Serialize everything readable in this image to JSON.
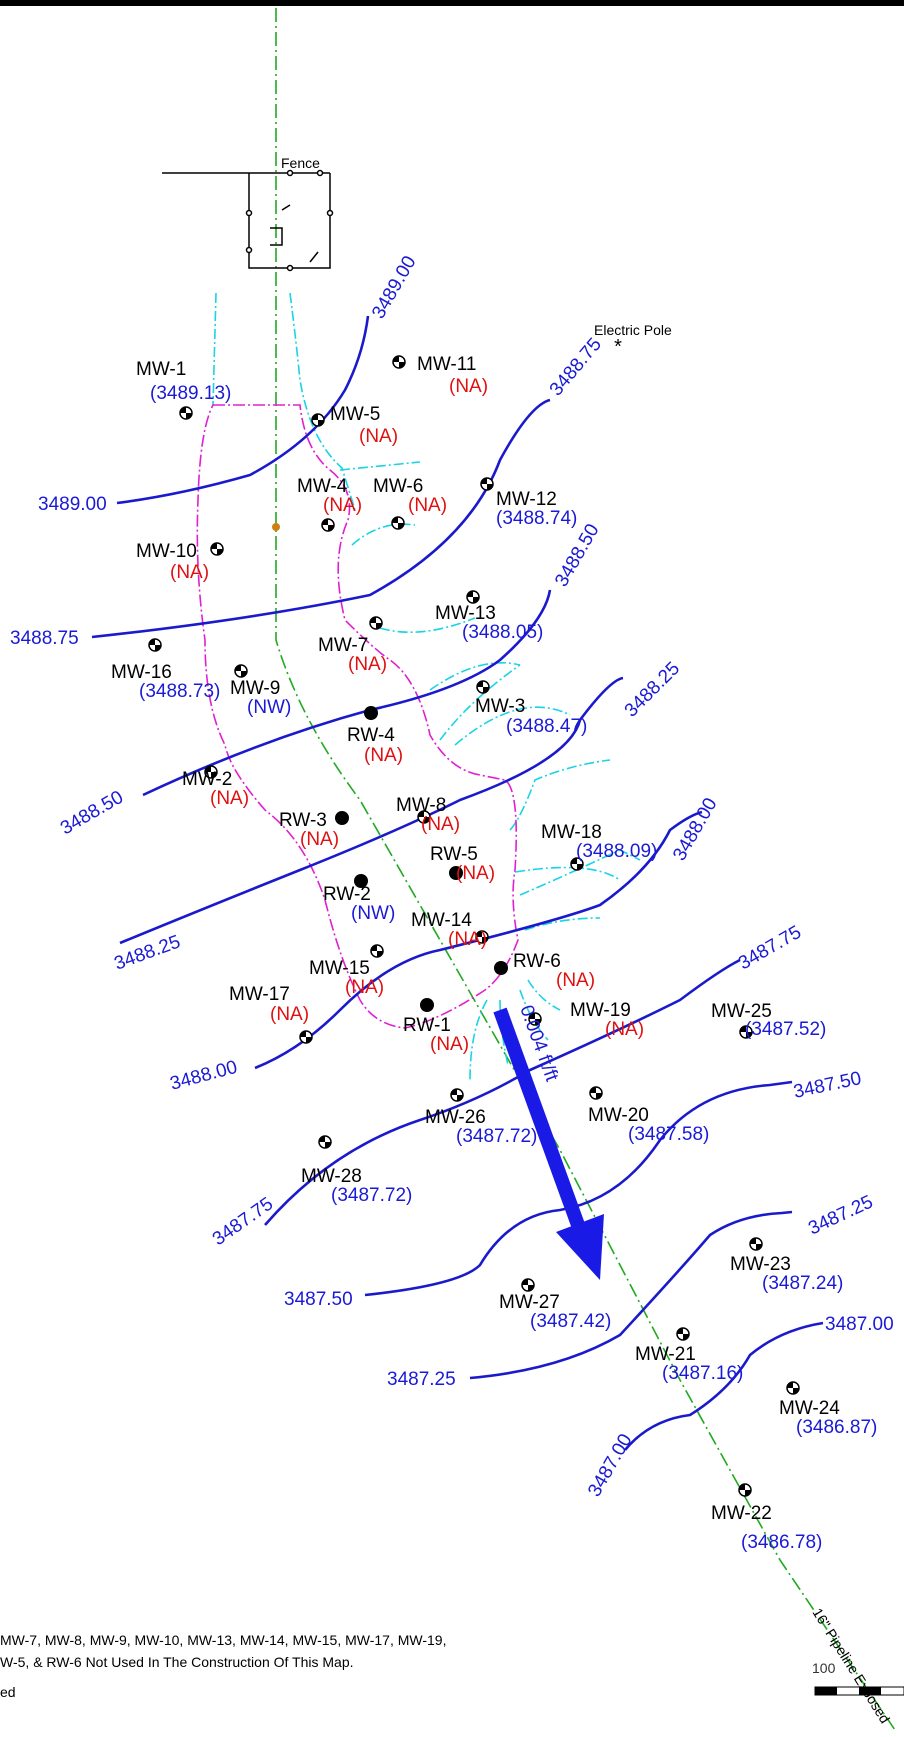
{
  "colors": {
    "contour": "#1a1acc",
    "label_blue": "#1a1ad6",
    "label_red": "#e01010",
    "label_black": "#000000",
    "cyan": "#18d4e4",
    "plume": "#e020d0",
    "pipeline": "#1faa1f",
    "arrow": "#1a1ae6"
  },
  "features": {
    "fence": "Fence",
    "electric_pole": "Electric Pole",
    "pipeline": "16\" Pipeline Exposed"
  },
  "gradient": {
    "label": "0.004 ft/ft",
    "icon": "flow-direction-arrow-icon"
  },
  "contour_labels": [
    "3489.00",
    "3489.00",
    "3488.75",
    "3488.75",
    "3488.50",
    "3488.50",
    "3488.25",
    "3488.25",
    "3488.00",
    "3488.00",
    "3487.75",
    "3487.75",
    "3487.50",
    "3487.50",
    "3487.25",
    "3487.25",
    "3487.00",
    "3487.00"
  ],
  "wells": [
    {
      "name": "MW-1",
      "value": "(3489.13)",
      "status": "measured"
    },
    {
      "name": "MW-11",
      "value": "(NA)",
      "status": "na"
    },
    {
      "name": "MW-5",
      "value": "(NA)",
      "status": "na"
    },
    {
      "name": "MW-4",
      "value": "(NA)",
      "status": "na"
    },
    {
      "name": "MW-6",
      "value": "(NA)",
      "status": "na"
    },
    {
      "name": "MW-12",
      "value": "(3488.74)",
      "status": "measured"
    },
    {
      "name": "MW-10",
      "value": "(NA)",
      "status": "na"
    },
    {
      "name": "MW-13",
      "value": "(3488.05)",
      "status": "measured"
    },
    {
      "name": "MW-7",
      "value": "(NA)",
      "status": "na"
    },
    {
      "name": "MW-16",
      "value": "(3488.73)",
      "status": "measured"
    },
    {
      "name": "MW-9",
      "value": "(NW)",
      "status": "nw"
    },
    {
      "name": "MW-3",
      "value": "(3488.47)",
      "status": "measured"
    },
    {
      "name": "RW-4",
      "value": "(NA)",
      "status": "na"
    },
    {
      "name": "MW-2",
      "value": "(NA)",
      "status": "na"
    },
    {
      "name": "MW-8",
      "value": "(NA)",
      "status": "na"
    },
    {
      "name": "RW-3",
      "value": "(NA)",
      "status": "na"
    },
    {
      "name": "MW-18",
      "value": "(3488.09)",
      "status": "measured"
    },
    {
      "name": "RW-5",
      "value": "(NA)",
      "status": "na"
    },
    {
      "name": "RW-2",
      "value": "(NW)",
      "status": "nw"
    },
    {
      "name": "MW-14",
      "value": "(NA)",
      "status": "na"
    },
    {
      "name": "RW-6",
      "value": "(NA)",
      "status": "na"
    },
    {
      "name": "MW-15",
      "value": "(NA)",
      "status": "na"
    },
    {
      "name": "MW-17",
      "value": "(NA)",
      "status": "na"
    },
    {
      "name": "RW-1",
      "value": "(NA)",
      "status": "na"
    },
    {
      "name": "MW-19",
      "value": "(NA)",
      "status": "na"
    },
    {
      "name": "MW-25",
      "value": "(3487.52)",
      "status": "measured"
    },
    {
      "name": "MW-20",
      "value": "(3487.58)",
      "status": "measured"
    },
    {
      "name": "MW-26",
      "value": "(3487.72)",
      "status": "measured"
    },
    {
      "name": "MW-28",
      "value": "(3487.72)",
      "status": "measured"
    },
    {
      "name": "MW-23",
      "value": "(3487.24)",
      "status": "measured"
    },
    {
      "name": "MW-27",
      "value": "(3487.42)",
      "status": "measured"
    },
    {
      "name": "MW-21",
      "value": "(3487.16)",
      "status": "measured"
    },
    {
      "name": "MW-24",
      "value": "(3486.87)",
      "status": "measured"
    },
    {
      "name": "MW-22",
      "value": "(3486.78)",
      "status": "measured"
    }
  ],
  "notes": [
    "MW-7, MW-8, MW-9, MW-10, MW-13, MW-14, MW-15, MW-17, MW-19,",
    "W-5, & RW-6 Not Used In The Construction Of This Map.",
    "ed"
  ],
  "scale": {
    "label": "100"
  }
}
